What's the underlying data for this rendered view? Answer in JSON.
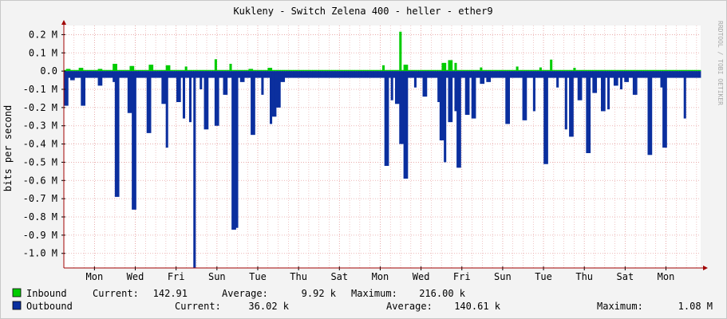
{
  "title": "Kukleny - Switch Zelena 400 - heller - ether9",
  "watermark": "RRDTOOL / TOBI OETIKER",
  "colors": {
    "background": "#f3f3f3",
    "canvas": "#ffffff",
    "grid": "#e6a0a0",
    "inbound": "#00cc00",
    "outbound": "#0b2f9e",
    "axis": "#a00000"
  },
  "chart_data": {
    "type": "area",
    "ylabel": "bits per second",
    "ylim": [
      -1080000,
      250000
    ],
    "y_ticks": [
      200000,
      100000,
      0,
      -100000,
      -200000,
      -300000,
      -400000,
      -500000,
      -600000,
      -700000,
      -800000,
      -900000,
      -1000000
    ],
    "y_tick_labels": [
      "0.2 M",
      "0.1 M",
      "0.0",
      "-0.1 M",
      "-0.2 M",
      "-0.3 M",
      "-0.4 M",
      "-0.5 M",
      "-0.6 M",
      "-0.7 M",
      "-0.8 M",
      "-0.9 M",
      "-1.0 M"
    ],
    "xlim": [
      0,
      15.6
    ],
    "x_unit": "days",
    "x_ticks": [
      0.75,
      1.75,
      2.75,
      3.75,
      4.75,
      5.75,
      6.75,
      7.75,
      8.75,
      9.75,
      10.75,
      11.75,
      12.75,
      13.75,
      14.75
    ],
    "x_tick_labels": [
      "Mon",
      "Wed",
      "Fri",
      "Sun",
      "Tue",
      "Thu",
      "Sat",
      "Mon",
      "Wed",
      "Fri",
      "Sun",
      "Tue",
      "Thu",
      "Sat",
      "Mon"
    ],
    "grid": true,
    "legend_position": "bottom",
    "baseline": {
      "outbound": -37000,
      "inbound": 6000
    },
    "series": [
      {
        "name": "Inbound",
        "direction": "positive",
        "stats": {
          "current": "142.91",
          "average": "9.92 k",
          "maximum": "216.00 k"
        },
        "spikes": [
          [
            0.1,
            0.012
          ],
          [
            0.49,
            0.018
          ],
          [
            1.06,
            0.012
          ],
          [
            1.5,
            0.04
          ],
          [
            2.0,
            0.028
          ],
          [
            2.55,
            0.035
          ],
          [
            3.06,
            0.032
          ],
          [
            3.6,
            0.025
          ],
          [
            4.49,
            0.065
          ],
          [
            4.95,
            0.04
          ],
          [
            5.55,
            0.012
          ],
          [
            6.1,
            0.018
          ],
          [
            9.5,
            0.032
          ],
          [
            10.0,
            0.216
          ],
          [
            10.15,
            0.035
          ],
          [
            11.3,
            0.045
          ],
          [
            11.5,
            0.06
          ],
          [
            11.65,
            0.045
          ],
          [
            12.4,
            0.02
          ],
          [
            13.5,
            0.025
          ],
          [
            14.2,
            0.02
          ],
          [
            14.49,
            0.063
          ],
          [
            15.2,
            0.018
          ]
        ]
      },
      {
        "name": "Outbound",
        "direction": "negative",
        "stats": {
          "current": "36.02 k",
          "average": "140.61 k",
          "maximum": "1.08 M"
        },
        "spikes": [
          [
            0.03,
            -0.19
          ],
          [
            0.22,
            -0.05
          ],
          [
            0.52,
            -0.19
          ],
          [
            1.05,
            -0.08
          ],
          [
            1.45,
            -0.06
          ],
          [
            1.54,
            -0.69
          ],
          [
            1.95,
            -0.23
          ],
          [
            2.05,
            -0.76
          ],
          [
            2.5,
            -0.34
          ],
          [
            2.95,
            -0.18
          ],
          [
            3.05,
            -0.42
          ],
          [
            3.4,
            -0.17
          ],
          [
            3.55,
            -0.26
          ],
          [
            3.75,
            -0.28
          ],
          [
            3.86,
            -1.08
          ],
          [
            4.05,
            -0.1
          ],
          [
            4.2,
            -0.32
          ],
          [
            4.5,
            -0.3
          ],
          [
            4.55,
            -0.3
          ],
          [
            4.8,
            -0.13
          ],
          [
            5.05,
            -0.87
          ],
          [
            5.1,
            -0.86
          ],
          [
            5.3,
            -0.06
          ],
          [
            5.6,
            -0.35
          ],
          [
            5.9,
            -0.13
          ],
          [
            6.15,
            -0.29
          ],
          [
            6.25,
            -0.25
          ],
          [
            6.35,
            -0.2
          ],
          [
            6.5,
            -0.06
          ],
          [
            9.6,
            -0.52
          ],
          [
            9.75,
            -0.16
          ],
          [
            9.9,
            -0.18
          ],
          [
            10.05,
            -0.4
          ],
          [
            10.15,
            -0.59
          ],
          [
            10.45,
            -0.09
          ],
          [
            10.75,
            -0.14
          ],
          [
            11.15,
            -0.17
          ],
          [
            11.25,
            -0.38
          ],
          [
            11.35,
            -0.5
          ],
          [
            11.5,
            -0.28
          ],
          [
            11.65,
            -0.22
          ],
          [
            11.75,
            -0.53
          ],
          [
            12.0,
            -0.24
          ],
          [
            12.2,
            -0.26
          ],
          [
            12.45,
            -0.07
          ],
          [
            12.65,
            -0.06
          ],
          [
            13.2,
            -0.29
          ],
          [
            13.7,
            -0.27
          ],
          [
            14.0,
            -0.22
          ],
          [
            14.35,
            -0.51
          ],
          [
            14.7,
            -0.09
          ],
          [
            14.95,
            -0.32
          ],
          [
            15.1,
            -0.36
          ],
          [
            15.35,
            -0.16
          ],
          [
            15.6,
            -0.45
          ],
          [
            15.8,
            -0.12
          ],
          [
            16.05,
            -0.22
          ],
          [
            16.2,
            -0.21
          ],
          [
            16.45,
            -0.08
          ],
          [
            16.6,
            -0.1
          ],
          [
            16.75,
            -0.06
          ],
          [
            17.0,
            -0.13
          ],
          [
            17.45,
            -0.46
          ],
          [
            17.8,
            -0.09
          ],
          [
            17.9,
            -0.42
          ],
          [
            18.5,
            -0.26
          ]
        ]
      }
    ]
  },
  "legend": {
    "inbound": {
      "label": "Inbound",
      "current_label": "Current:",
      "current": "142.91",
      "average_label": "Average:",
      "average": "9.92 k",
      "maximum_label": "Maximum:",
      "maximum": "216.00 k"
    },
    "outbound": {
      "label": "Outbound",
      "current_label": "Current:",
      "current": "36.02 k",
      "average_label": "Average:",
      "average": "140.61 k",
      "maximum_label": "Maximum:",
      "maximum": "1.08 M"
    }
  }
}
